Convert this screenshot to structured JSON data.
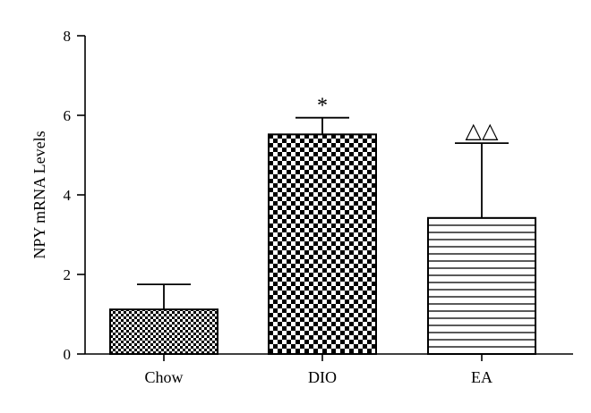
{
  "chart_data": {
    "type": "bar",
    "title": "",
    "xlabel": "",
    "ylabel": "NPY mRNA Levels",
    "ylim": [
      0,
      8
    ],
    "yticks": [
      0,
      2,
      4,
      6,
      8
    ],
    "grid": false,
    "categories": [
      "Chow",
      "DIO",
      "EA"
    ],
    "values": [
      1.12,
      5.52,
      3.42
    ],
    "errors": [
      0.63,
      0.42,
      1.88
    ],
    "patterns": [
      "fine-checker",
      "coarse-checker",
      "horizontal-lines"
    ],
    "annotations": [
      "",
      "*",
      "△△"
    ],
    "colors": {
      "fill": "#ffffff",
      "pattern": "#000000",
      "axis": "#000000"
    }
  }
}
